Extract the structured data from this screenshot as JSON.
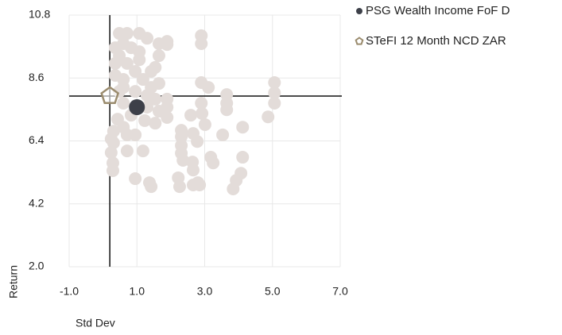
{
  "chart_data": {
    "type": "scatter",
    "xlabel": "Std Dev",
    "ylabel": "Return",
    "xlim": [
      -1,
      7
    ],
    "xticks": [
      {
        "value": -1,
        "label": "-1.0"
      },
      {
        "value": 1,
        "label": "1.0"
      },
      {
        "value": 3,
        "label": "3.0"
      },
      {
        "value": 5,
        "label": "5.0"
      },
      {
        "value": 7,
        "label": "7.0"
      }
    ],
    "ylim": [
      2,
      10.8
    ],
    "yticks": [
      {
        "value": 2,
        "label": "2.0"
      },
      {
        "value": 4.2,
        "label": "4.2"
      },
      {
        "value": 6.4,
        "label": "6.4"
      },
      {
        "value": 8.6,
        "label": "8.6"
      },
      {
        "value": 10.8,
        "label": "10.8"
      }
    ],
    "grid": true,
    "legend": "top-right",
    "series": [
      {
        "color": "#e3dcd9",
        "marker": "circle",
        "x": [
          1.89,
          1.89,
          2.9,
          3.11,
          2.9,
          2.92,
          2.59,
          3.65,
          3.65,
          3.65,
          5.06,
          5.06,
          5.06,
          4.87,
          2.9,
          2.9,
          2.31,
          2.31,
          2.31,
          2.31,
          2.66,
          2.78,
          3.01,
          3.25,
          2.64,
          2.66,
          2.36,
          2.66,
          2.22,
          2.26,
          2.85,
          2.8,
          4.12,
          4.07,
          3.93,
          3.84,
          3.18,
          3.53,
          4.12,
          1.89,
          1.89,
          1.3,
          1.37,
          1.42,
          0.95,
          0.29,
          0.29,
          0.31,
          0.31,
          0.71,
          0.71,
          1.18,
          1.23,
          1.54,
          1.65,
          0.48,
          0.71,
          1.07,
          1.3,
          0.6,
          0.83,
          1.07,
          0.48,
          0.71,
          0.95,
          0.36,
          0.6,
          1.18,
          1.42,
          1.65,
          1.3,
          0.6,
          0.83,
          1.65,
          1.54,
          1.07,
          0.48,
          0.36,
          0.36,
          0.6,
          0.95,
          0.24,
          0.43,
          1.89,
          1.54,
          0.95,
          1.42,
          0.6,
          1.65,
          0.24
        ],
        "values": [
          9.88,
          9.77,
          8.44,
          8.27,
          7.72,
          7.36,
          7.3,
          8.02,
          7.72,
          7.49,
          8.44,
          8.08,
          7.72,
          7.24,
          9.8,
          10.08,
          6.77,
          6.55,
          6.24,
          5.97,
          6.66,
          6.38,
          6.97,
          5.63,
          5.66,
          5.38,
          5.72,
          4.86,
          5.11,
          4.8,
          4.86,
          4.94,
          5.83,
          5.27,
          5.02,
          4.72,
          5.83,
          6.61,
          6.88,
          7.58,
          7.22,
          7.58,
          4.94,
          4.8,
          5.08,
          5.63,
          5.36,
          6.33,
          6.74,
          6.05,
          6.61,
          6.05,
          7.11,
          7.02,
          7.44,
          10.16,
          10.16,
          10.16,
          9.99,
          9.8,
          9.66,
          9.52,
          9.38,
          9.11,
          8.83,
          8.69,
          8.55,
          8.55,
          8.27,
          8.41,
          7.99,
          7.72,
          7.3,
          9.38,
          8.97,
          9.24,
          8.13,
          9.11,
          9.66,
          6.88,
          6.61,
          5.99,
          7.16,
          7.86,
          7.86,
          8.13,
          8.83,
          8.27,
          9.8,
          6.47
        ]
      },
      {
        "name": "PSG Wealth Income FoF D",
        "color": "#3d4049",
        "marker": "circle",
        "x": [
          1.0
        ],
        "values": [
          7.58
        ]
      },
      {
        "name": "STeFI 12 Month NCD ZAR",
        "color": "#9b8c6e",
        "marker": "pentagon",
        "crosshair": true,
        "x": [
          0.2
        ],
        "values": [
          7.97
        ]
      }
    ]
  }
}
